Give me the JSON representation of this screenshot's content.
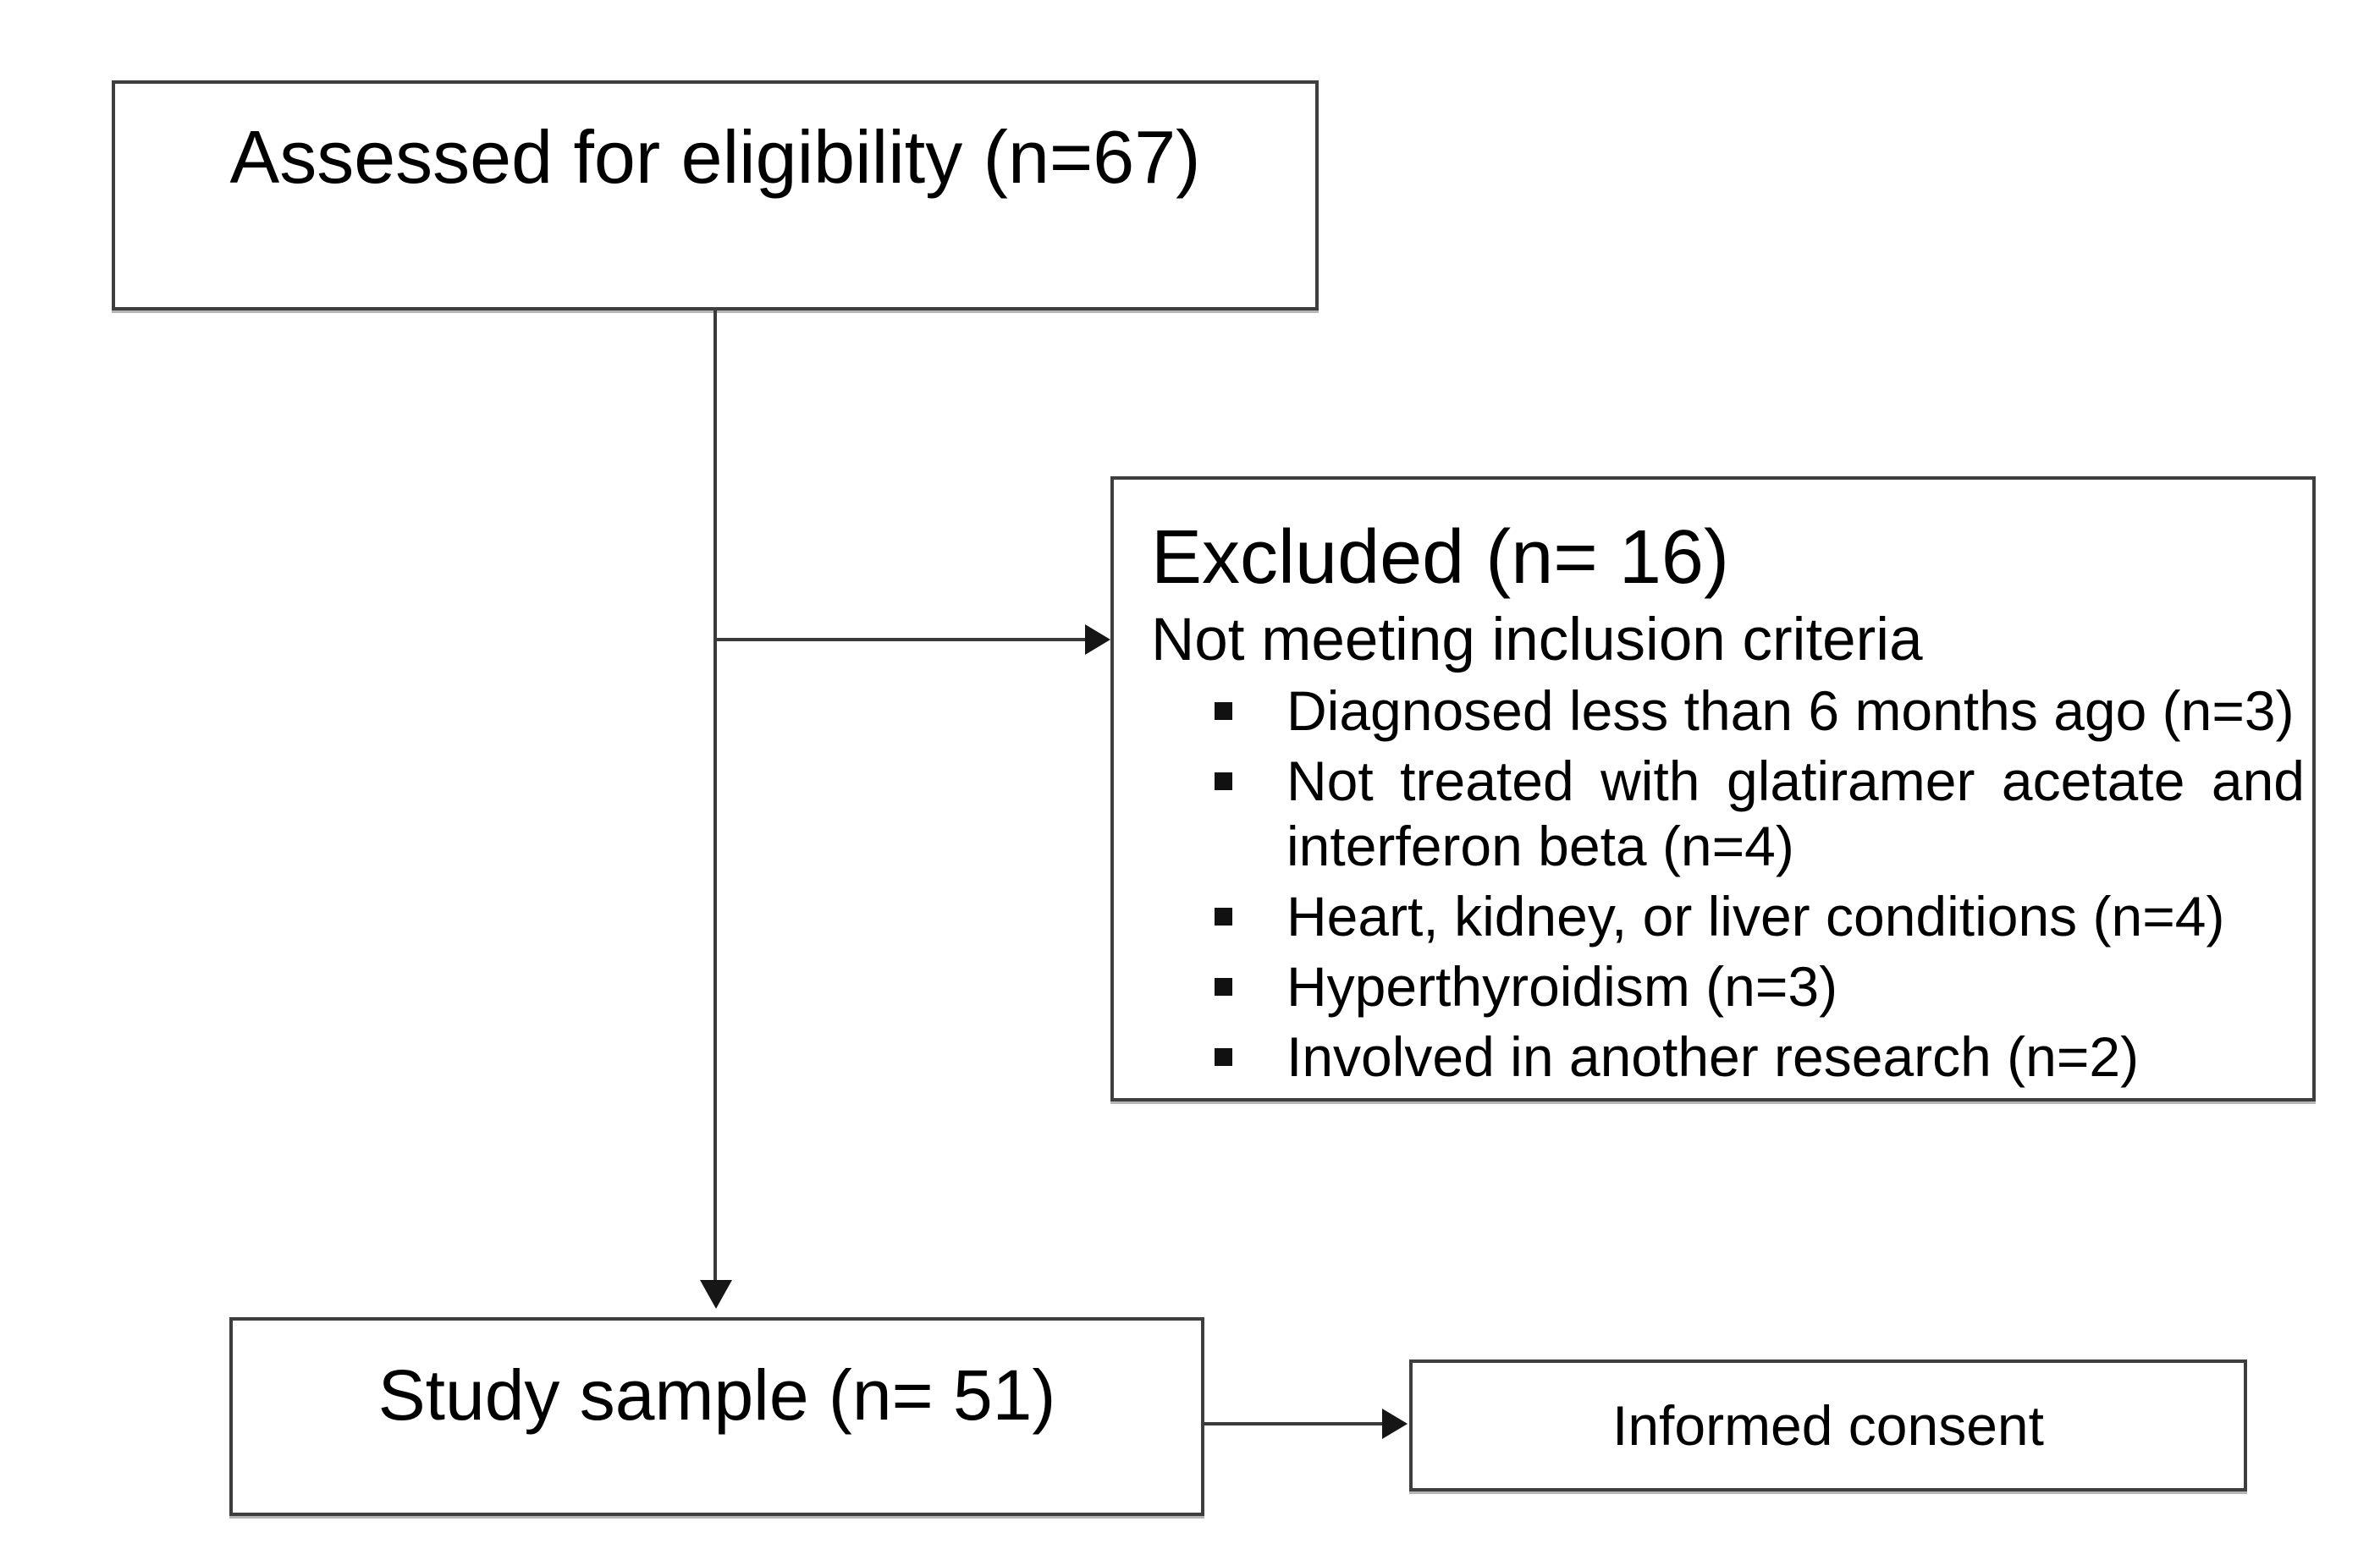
{
  "diagram": {
    "assessed_label": "Assessed for eligibility (n=67)",
    "excluded": {
      "title": "Excluded (n= 16)",
      "subtitle": "Not meeting inclusion criteria",
      "items": [
        "Diagnosed less than 6 months ago (n=3)",
        "Not treated with glatiramer acetate and interferon beta (n=4)",
        "Heart, kidney, or liver conditions (n=4)",
        "Hyperthyroidism (n=3)",
        "Involved in another research (n=2)"
      ]
    },
    "study_sample_label": "Study sample (n= 51)",
    "informed_consent_label": "Informed consent"
  },
  "colors": {
    "background": "#ffffff",
    "box_border": "#3e3e3e",
    "connector_line": "#3a3a3a",
    "arrowhead": "#161616",
    "text": "#000000"
  }
}
